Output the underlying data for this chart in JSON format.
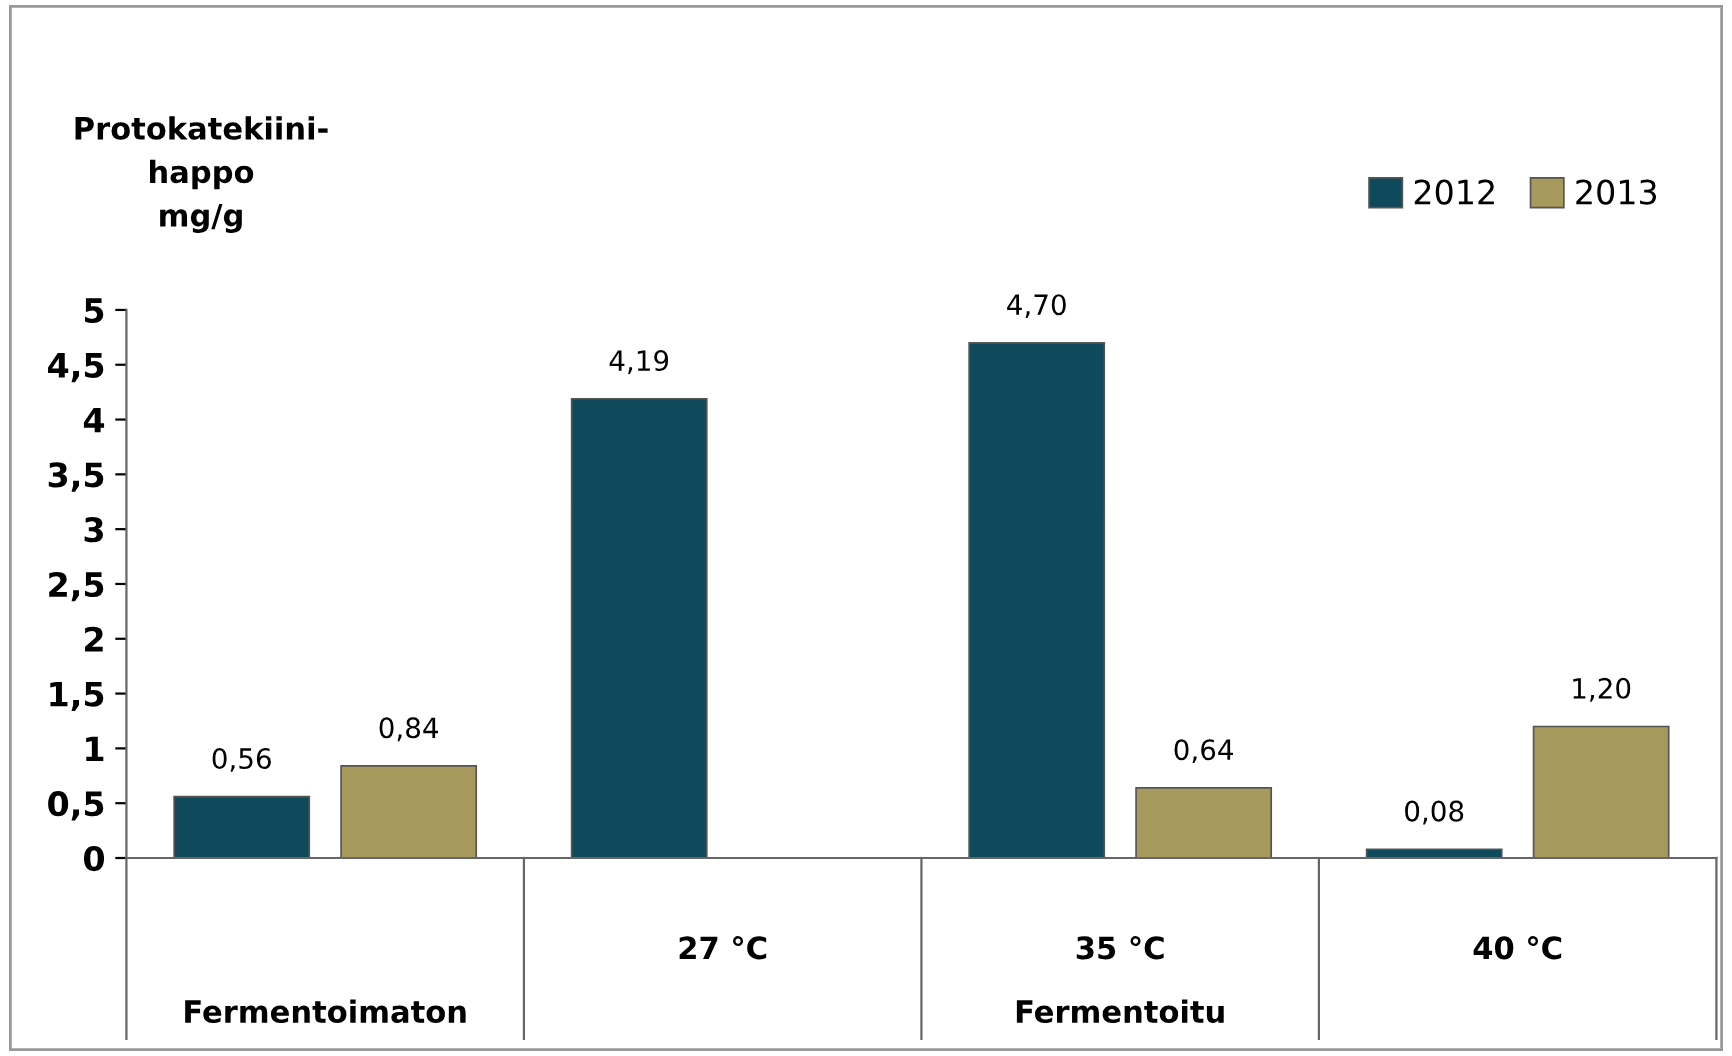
{
  "chart_data": {
    "type": "bar",
    "ylabel": "Protokatekiini-\nhappo\nmg/g",
    "categories": [
      null,
      "27 °C",
      "35 °C",
      "40 °C"
    ],
    "series": [
      {
        "name": "2012",
        "color": "#0f4a5c",
        "values": [
          0.56,
          4.19,
          4.7,
          0.08
        ],
        "value_labels": [
          "0,56",
          "4,19",
          "4,70",
          "0,08"
        ]
      },
      {
        "name": "2013",
        "color": "#a8995c",
        "values": [
          0.84,
          null,
          0.64,
          1.2
        ],
        "value_labels": [
          "0,84",
          null,
          "0,64",
          "1,20"
        ]
      }
    ],
    "ylim": [
      0,
      5
    ],
    "yticks": [
      0,
      {
        "value": 0.5,
        "label": "0,5"
      },
      1,
      {
        "value": 1.5,
        "label": "1,5"
      },
      2,
      {
        "value": 2.5,
        "label": "2,5"
      },
      3,
      {
        "value": 3.5,
        "label": "3,5"
      },
      4,
      {
        "value": 4.5,
        "label": "4,5"
      },
      5
    ],
    "annotations": [
      "Fermentoimaton",
      "Fermentoitu"
    ],
    "grid": false,
    "legend": "top right"
  }
}
